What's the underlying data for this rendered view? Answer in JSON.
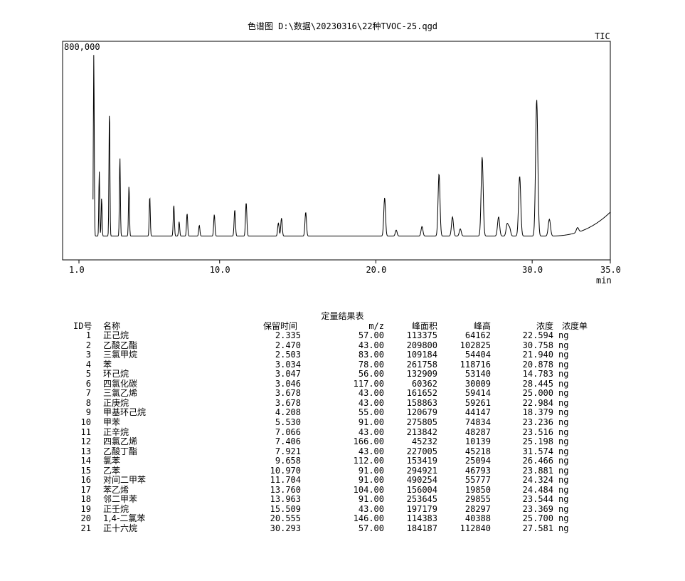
{
  "chart_data": {
    "type": "line",
    "title": "色谱图  D:\\数据\\20230316\\22种TVOC-25.qgd",
    "series_label": "TIC",
    "y_max_label": "800,000",
    "xlabel": "min",
    "xlim": [
      1.0,
      35.0
    ],
    "ylim": [
      0,
      800000
    ],
    "x_tick_labels": [
      "1.0",
      "10.0",
      "20.0",
      "30.0",
      "35.0"
    ],
    "x_ticks": [
      1.0,
      10.0,
      20.0,
      30.0,
      35.0
    ],
    "baseline": 40000,
    "peaks": [
      {
        "x": 1.95,
        "y": 800000
      },
      {
        "x": 2.3,
        "y": 310000
      },
      {
        "x": 2.45,
        "y": 200000
      },
      {
        "x": 2.95,
        "y": 570000
      },
      {
        "x": 3.62,
        "y": 370000
      },
      {
        "x": 4.2,
        "y": 250000
      },
      {
        "x": 5.53,
        "y": 205000
      },
      {
        "x": 7.07,
        "y": 170000
      },
      {
        "x": 7.41,
        "y": 100000
      },
      {
        "x": 7.92,
        "y": 135000
      },
      {
        "x": 8.7,
        "y": 85000
      },
      {
        "x": 9.66,
        "y": 130000
      },
      {
        "x": 10.97,
        "y": 150000
      },
      {
        "x": 11.7,
        "y": 180000
      },
      {
        "x": 13.76,
        "y": 95000
      },
      {
        "x": 13.96,
        "y": 115000
      },
      {
        "x": 15.51,
        "y": 140000
      },
      {
        "x": 20.56,
        "y": 200000
      },
      {
        "x": 21.3,
        "y": 65000
      },
      {
        "x": 22.95,
        "y": 80000
      },
      {
        "x": 24.04,
        "y": 300000
      },
      {
        "x": 24.9,
        "y": 120000
      },
      {
        "x": 25.4,
        "y": 70000
      },
      {
        "x": 26.8,
        "y": 370000
      },
      {
        "x": 27.85,
        "y": 120000
      },
      {
        "x": 28.4,
        "y": 90000
      },
      {
        "x": 28.55,
        "y": 75000
      },
      {
        "x": 29.2,
        "y": 290000
      },
      {
        "x": 30.29,
        "y": 610000
      },
      {
        "x": 31.1,
        "y": 110000
      },
      {
        "x": 32.9,
        "y": 60000
      }
    ]
  },
  "table": {
    "title": "定量结果表",
    "headers": {
      "id": "ID号",
      "name": "名称",
      "rt": "保留时间",
      "mz": "m/z",
      "area": "峰面积",
      "height": "峰高",
      "conc": "浓度",
      "conc_unit": "浓度单"
    },
    "rows": [
      {
        "id": "1",
        "name": "正己烷",
        "rt": "2.335",
        "mz": "57.00",
        "area": "113375",
        "height": "64162",
        "conc": "22.594",
        "unit": "ng"
      },
      {
        "id": "2",
        "name": "乙酸乙酯",
        "rt": "2.470",
        "mz": "43.00",
        "area": "209800",
        "height": "102825",
        "conc": "30.758",
        "unit": "ng"
      },
      {
        "id": "3",
        "name": "三氯甲烷",
        "rt": "2.503",
        "mz": "83.00",
        "area": "109184",
        "height": "54404",
        "conc": "21.940",
        "unit": "ng"
      },
      {
        "id": "4",
        "name": "苯",
        "rt": "3.034",
        "mz": "78.00",
        "area": "261758",
        "height": "118716",
        "conc": "20.878",
        "unit": "ng"
      },
      {
        "id": "5",
        "name": "环己烷",
        "rt": "3.047",
        "mz": "56.00",
        "area": "132909",
        "height": "53140",
        "conc": "14.783",
        "unit": "ng"
      },
      {
        "id": "6",
        "name": "四氯化碳",
        "rt": "3.046",
        "mz": "117.00",
        "area": "60362",
        "height": "30009",
        "conc": "28.445",
        "unit": "ng"
      },
      {
        "id": "7",
        "name": "三氯乙烯",
        "rt": "3.678",
        "mz": "43.00",
        "area": "161652",
        "height": "59414",
        "conc": "25.000",
        "unit": "ng"
      },
      {
        "id": "8",
        "name": "正庚烷",
        "rt": "3.678",
        "mz": "43.00",
        "area": "158863",
        "height": "59261",
        "conc": "22.984",
        "unit": "ng"
      },
      {
        "id": "9",
        "name": "甲基环己烷",
        "rt": "4.208",
        "mz": "55.00",
        "area": "120679",
        "height": "44147",
        "conc": "18.379",
        "unit": "ng"
      },
      {
        "id": "10",
        "name": "甲苯",
        "rt": "5.530",
        "mz": "91.00",
        "area": "275805",
        "height": "74834",
        "conc": "23.236",
        "unit": "ng"
      },
      {
        "id": "11",
        "name": "正辛烷",
        "rt": "7.066",
        "mz": "43.00",
        "area": "213842",
        "height": "48287",
        "conc": "23.516",
        "unit": "ng"
      },
      {
        "id": "12",
        "name": "四氯乙烯",
        "rt": "7.406",
        "mz": "166.00",
        "area": "45232",
        "height": "10139",
        "conc": "25.198",
        "unit": "ng"
      },
      {
        "id": "13",
        "name": "乙酸丁酯",
        "rt": "7.921",
        "mz": "43.00",
        "area": "227005",
        "height": "45218",
        "conc": "31.574",
        "unit": "ng"
      },
      {
        "id": "14",
        "name": "氯苯",
        "rt": "9.658",
        "mz": "112.00",
        "area": "153419",
        "height": "25094",
        "conc": "26.466",
        "unit": "ng"
      },
      {
        "id": "15",
        "name": "乙苯",
        "rt": "10.970",
        "mz": "91.00",
        "area": "294921",
        "height": "46793",
        "conc": "23.881",
        "unit": "ng"
      },
      {
        "id": "16",
        "name": "对间二甲苯",
        "rt": "11.704",
        "mz": "91.00",
        "area": "490254",
        "height": "55777",
        "conc": "24.324",
        "unit": "ng"
      },
      {
        "id": "17",
        "name": "苯乙烯",
        "rt": "13.760",
        "mz": "104.00",
        "area": "156004",
        "height": "19850",
        "conc": "24.484",
        "unit": "ng"
      },
      {
        "id": "18",
        "name": "邻二甲苯",
        "rt": "13.963",
        "mz": "91.00",
        "area": "253645",
        "height": "29855",
        "conc": "23.544",
        "unit": "ng"
      },
      {
        "id": "19",
        "name": "正壬烷",
        "rt": "15.509",
        "mz": "43.00",
        "area": "197179",
        "height": "28297",
        "conc": "23.369",
        "unit": "ng"
      },
      {
        "id": "20",
        "name": "1,4-二氯苯",
        "rt": "20.555",
        "mz": "146.00",
        "area": "114383",
        "height": "40388",
        "conc": "25.700",
        "unit": "ng"
      },
      {
        "id": "21",
        "name": "正十六烷",
        "rt": "30.293",
        "mz": "57.00",
        "area": "184187",
        "height": "112840",
        "conc": "27.581",
        "unit": "ng"
      }
    ]
  }
}
